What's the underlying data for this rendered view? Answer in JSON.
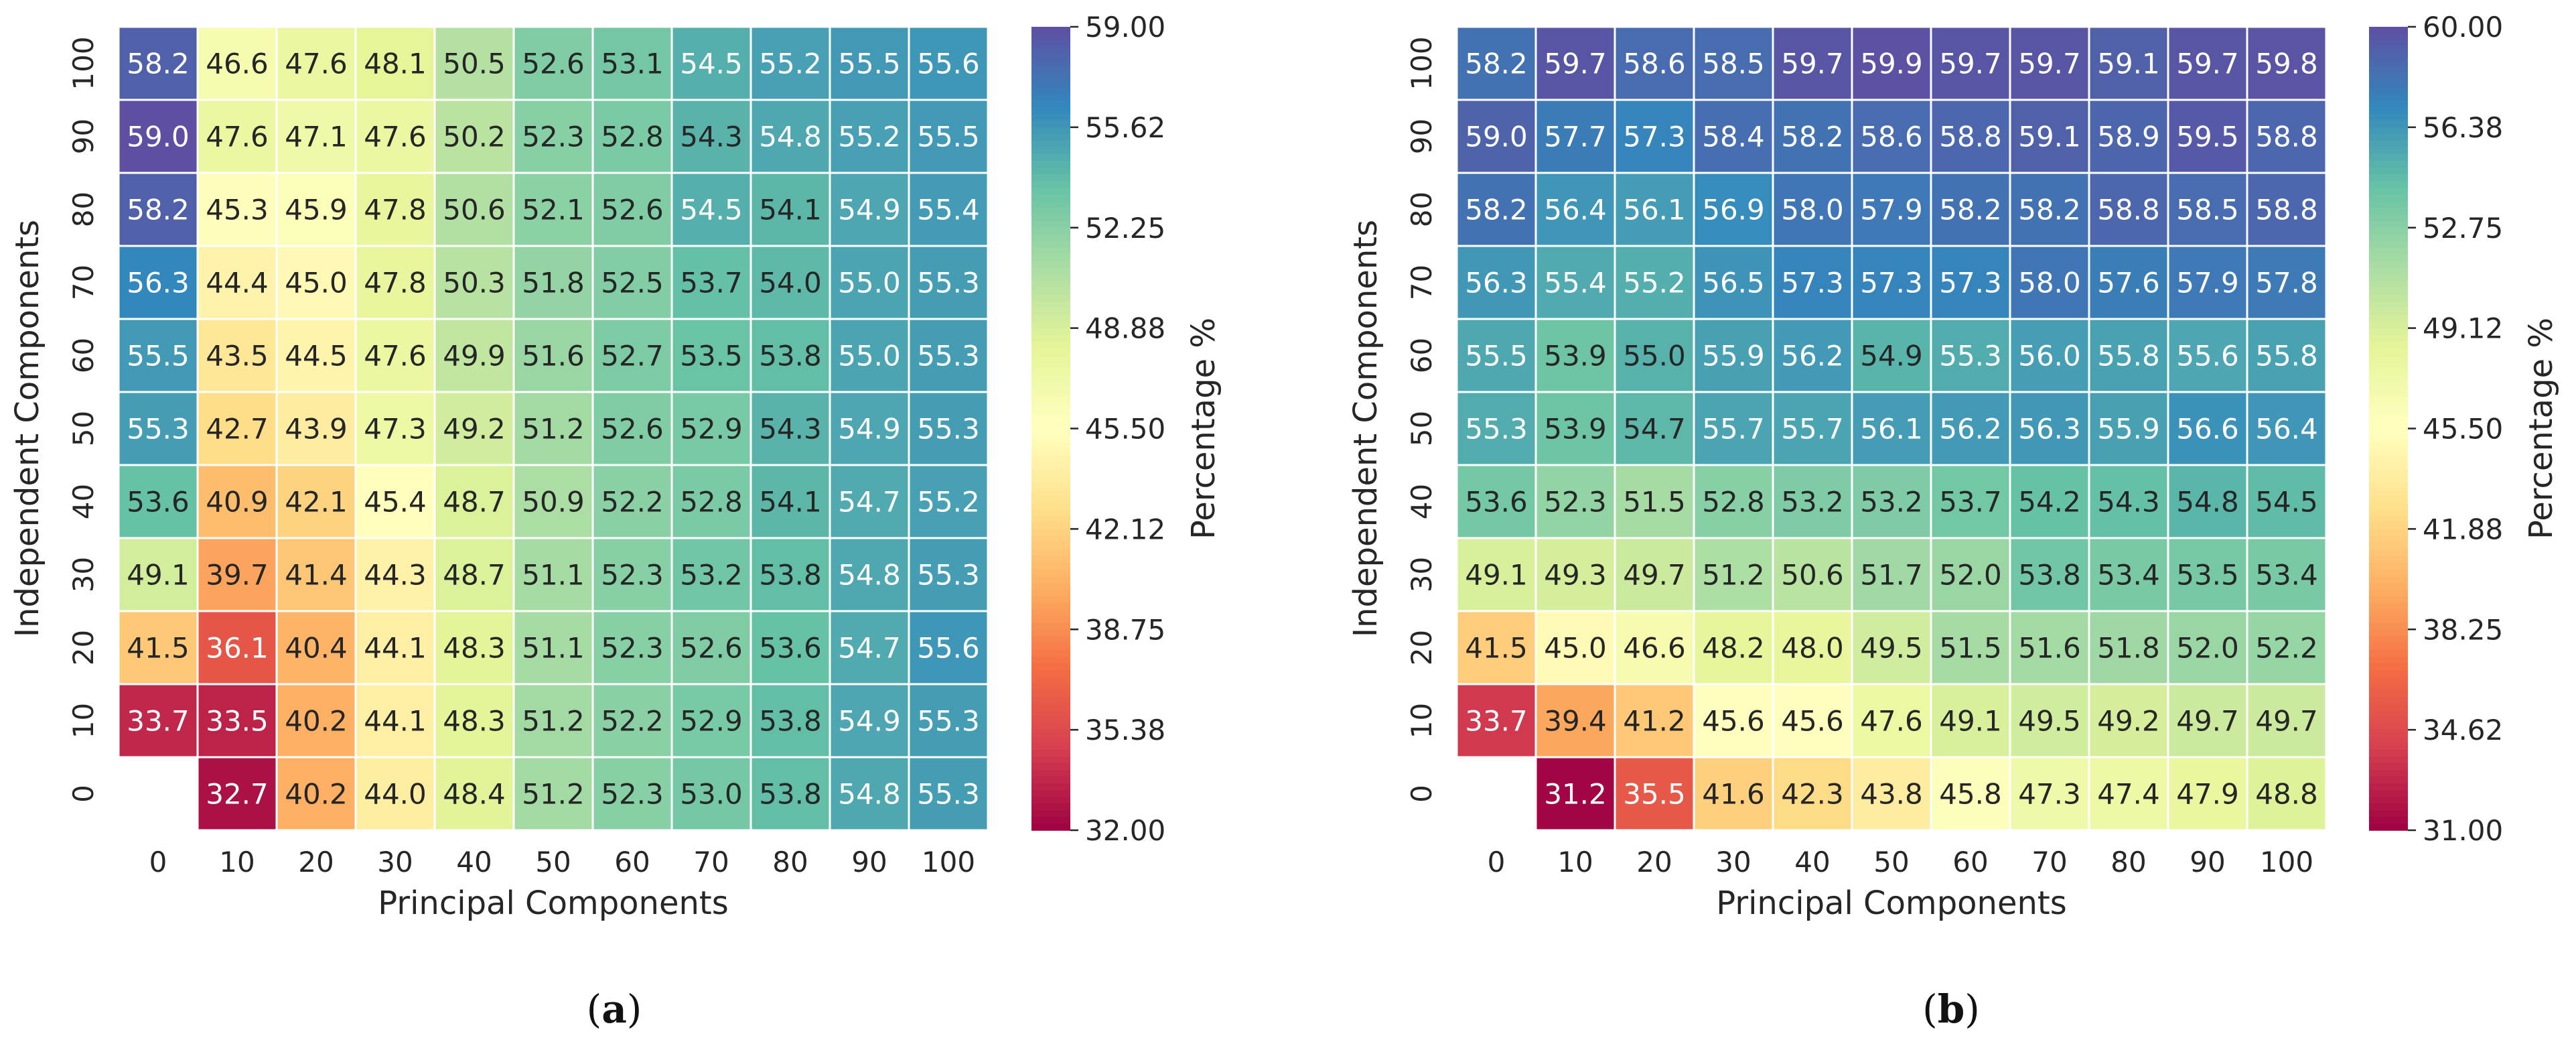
{
  "figure": {
    "panels": [
      {
        "label_open": "(",
        "label_letter": "a",
        "label_close": ")"
      },
      {
        "label_open": "(",
        "label_letter": "b",
        "label_close": ")"
      }
    ]
  },
  "chart_data": [
    {
      "type": "heatmap",
      "panel": "(a)",
      "xlabel": "Principal Components",
      "ylabel": "Independent Components",
      "colorbar_label": "Percentage %",
      "colormap": "Spectral",
      "x": [
        "0",
        "10",
        "20",
        "30",
        "40",
        "50",
        "60",
        "70",
        "80",
        "90",
        "100"
      ],
      "y": [
        "100",
        "90",
        "80",
        "70",
        "60",
        "50",
        "40",
        "30",
        "20",
        "10",
        "0"
      ],
      "vmin": 32.0,
      "vmax": 59.0,
      "colorbar_ticks": [
        "59.00",
        "55.62",
        "52.25",
        "48.88",
        "45.50",
        "42.12",
        "38.75",
        "35.38",
        "32.00"
      ],
      "values": [
        [
          58.2,
          46.6,
          47.6,
          48.1,
          50.5,
          52.6,
          53.1,
          54.5,
          55.2,
          55.5,
          55.6
        ],
        [
          59.0,
          47.6,
          47.1,
          47.6,
          50.2,
          52.3,
          52.8,
          54.3,
          54.8,
          55.2,
          55.5
        ],
        [
          58.2,
          45.3,
          45.9,
          47.8,
          50.6,
          52.1,
          52.6,
          54.5,
          54.1,
          54.9,
          55.4
        ],
        [
          56.3,
          44.4,
          45.0,
          47.8,
          50.3,
          51.8,
          52.5,
          53.7,
          54.0,
          55.0,
          55.3
        ],
        [
          55.5,
          43.5,
          44.5,
          47.6,
          49.9,
          51.6,
          52.7,
          53.5,
          53.8,
          55.0,
          55.3
        ],
        [
          55.3,
          42.7,
          43.9,
          47.3,
          49.2,
          51.2,
          52.6,
          52.9,
          54.3,
          54.9,
          55.3
        ],
        [
          53.6,
          40.9,
          42.1,
          45.4,
          48.7,
          50.9,
          52.2,
          52.8,
          54.1,
          54.7,
          55.2
        ],
        [
          49.1,
          39.7,
          41.4,
          44.3,
          48.7,
          51.1,
          52.3,
          53.2,
          53.8,
          54.8,
          55.3
        ],
        [
          41.5,
          36.1,
          40.4,
          44.1,
          48.3,
          51.1,
          52.3,
          52.6,
          53.6,
          54.7,
          55.6
        ],
        [
          33.7,
          33.5,
          40.2,
          44.1,
          48.3,
          51.2,
          52.2,
          52.9,
          53.8,
          54.9,
          55.3
        ],
        [
          null,
          32.7,
          40.2,
          44.0,
          48.4,
          51.2,
          52.3,
          53.0,
          53.8,
          54.8,
          55.3
        ]
      ]
    },
    {
      "type": "heatmap",
      "panel": "(b)",
      "xlabel": "Principal Components",
      "ylabel": "Independent Components",
      "colorbar_label": "Percentage %",
      "colormap": "Spectral",
      "x": [
        "0",
        "10",
        "20",
        "30",
        "40",
        "50",
        "60",
        "70",
        "80",
        "90",
        "100"
      ],
      "y": [
        "100",
        "90",
        "80",
        "70",
        "60",
        "50",
        "40",
        "30",
        "20",
        "10",
        "0"
      ],
      "vmin": 31.0,
      "vmax": 60.0,
      "colorbar_ticks": [
        "60.00",
        "56.38",
        "52.75",
        "49.12",
        "45.50",
        "41.88",
        "38.25",
        "34.62",
        "31.00"
      ],
      "values": [
        [
          58.2,
          59.7,
          58.6,
          58.5,
          59.7,
          59.9,
          59.7,
          59.7,
          59.1,
          59.7,
          59.8
        ],
        [
          59.0,
          57.7,
          57.3,
          58.4,
          58.2,
          58.6,
          58.8,
          59.1,
          58.9,
          59.5,
          58.8
        ],
        [
          58.2,
          56.4,
          56.1,
          56.9,
          58.0,
          57.9,
          58.2,
          58.2,
          58.8,
          58.5,
          58.8
        ],
        [
          56.3,
          55.4,
          55.2,
          56.5,
          57.3,
          57.3,
          57.3,
          58.0,
          57.6,
          57.9,
          57.8
        ],
        [
          55.5,
          53.9,
          55.0,
          55.9,
          56.2,
          54.9,
          55.3,
          56.0,
          55.8,
          55.6,
          55.8
        ],
        [
          55.3,
          53.9,
          54.7,
          55.7,
          55.7,
          56.1,
          56.2,
          56.3,
          55.9,
          56.6,
          56.4
        ],
        [
          53.6,
          52.3,
          51.5,
          52.8,
          53.2,
          53.2,
          53.7,
          54.2,
          54.3,
          54.8,
          54.5
        ],
        [
          49.1,
          49.3,
          49.7,
          51.2,
          50.6,
          51.7,
          52.0,
          53.8,
          53.4,
          53.5,
          53.4
        ],
        [
          41.5,
          45.0,
          46.6,
          48.2,
          48.0,
          49.5,
          51.5,
          51.6,
          51.8,
          52.0,
          52.2
        ],
        [
          33.7,
          39.4,
          41.2,
          45.6,
          45.6,
          47.6,
          49.1,
          49.5,
          49.2,
          49.7,
          49.7
        ],
        [
          null,
          31.2,
          35.5,
          41.6,
          42.3,
          43.8,
          45.8,
          47.3,
          47.4,
          47.9,
          48.8
        ]
      ]
    }
  ]
}
